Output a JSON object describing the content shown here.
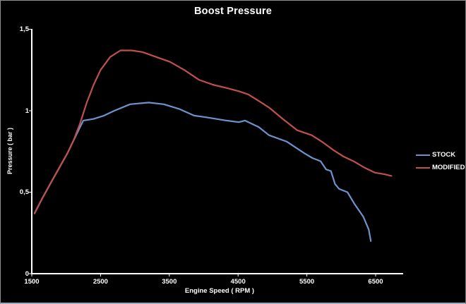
{
  "frame": {
    "background": "#000000",
    "border_color": "#8f8f8f",
    "bottom_strip_color": "#9aabc0"
  },
  "chart_data": {
    "type": "line",
    "title": "Boost Pressure",
    "xlabel": "Engine Speed ( RPM )",
    "ylabel": "Pressure ( bar )",
    "xlim": [
      1500,
      6900
    ],
    "ylim": [
      0,
      1.5
    ],
    "x_ticks": [
      1500,
      2500,
      3500,
      4500,
      5500,
      6500
    ],
    "x_tick_labels": [
      "1500",
      "2500",
      "3500",
      "4500",
      "5500",
      "6500"
    ],
    "y_ticks": [
      0,
      0.5,
      1,
      1.5
    ],
    "y_tick_labels": [
      "0",
      "0,5",
      "1",
      "1,5"
    ],
    "grid": false,
    "legend_position": "right",
    "background_color": "#000000",
    "axis_color": "#ffffff",
    "text_color": "#ffffff",
    "series": [
      {
        "name": "STOCK",
        "color": "#6d92cd",
        "points": [
          [
            1540,
            0.37
          ],
          [
            1650,
            0.46
          ],
          [
            1780,
            0.56
          ],
          [
            1900,
            0.65
          ],
          [
            2020,
            0.74
          ],
          [
            2110,
            0.82
          ],
          [
            2180,
            0.88
          ],
          [
            2250,
            0.94
          ],
          [
            2400,
            0.95
          ],
          [
            2550,
            0.97
          ],
          [
            2700,
            1.0
          ],
          [
            2930,
            1.04
          ],
          [
            3200,
            1.05
          ],
          [
            3420,
            1.04
          ],
          [
            3650,
            1.01
          ],
          [
            3860,
            0.97
          ],
          [
            4030,
            0.96
          ],
          [
            4330,
            0.94
          ],
          [
            4510,
            0.93
          ],
          [
            4600,
            0.94
          ],
          [
            4800,
            0.9
          ],
          [
            4950,
            0.85
          ],
          [
            5210,
            0.81
          ],
          [
            5460,
            0.74
          ],
          [
            5580,
            0.71
          ],
          [
            5700,
            0.69
          ],
          [
            5780,
            0.64
          ],
          [
            5850,
            0.63
          ],
          [
            5910,
            0.55
          ],
          [
            5970,
            0.52
          ],
          [
            6090,
            0.5
          ],
          [
            6190,
            0.43
          ],
          [
            6320,
            0.35
          ],
          [
            6400,
            0.27
          ],
          [
            6430,
            0.2
          ]
        ]
      },
      {
        "name": "MODIFIED",
        "color": "#c0504d",
        "points": [
          [
            1540,
            0.37
          ],
          [
            1650,
            0.46
          ],
          [
            1780,
            0.56
          ],
          [
            1900,
            0.65
          ],
          [
            2020,
            0.74
          ],
          [
            2110,
            0.82
          ],
          [
            2200,
            0.92
          ],
          [
            2300,
            1.05
          ],
          [
            2400,
            1.16
          ],
          [
            2500,
            1.25
          ],
          [
            2640,
            1.33
          ],
          [
            2790,
            1.37
          ],
          [
            2950,
            1.37
          ],
          [
            3110,
            1.36
          ],
          [
            3310,
            1.33
          ],
          [
            3510,
            1.3
          ],
          [
            3720,
            1.25
          ],
          [
            3930,
            1.19
          ],
          [
            4130,
            1.16
          ],
          [
            4330,
            1.14
          ],
          [
            4510,
            1.12
          ],
          [
            4650,
            1.1
          ],
          [
            4800,
            1.06
          ],
          [
            4950,
            1.02
          ],
          [
            5150,
            0.95
          ],
          [
            5360,
            0.88
          ],
          [
            5570,
            0.85
          ],
          [
            5720,
            0.81
          ],
          [
            5880,
            0.76
          ],
          [
            6030,
            0.72
          ],
          [
            6180,
            0.69
          ],
          [
            6340,
            0.65
          ],
          [
            6490,
            0.62
          ],
          [
            6630,
            0.61
          ],
          [
            6730,
            0.6
          ]
        ]
      }
    ]
  }
}
